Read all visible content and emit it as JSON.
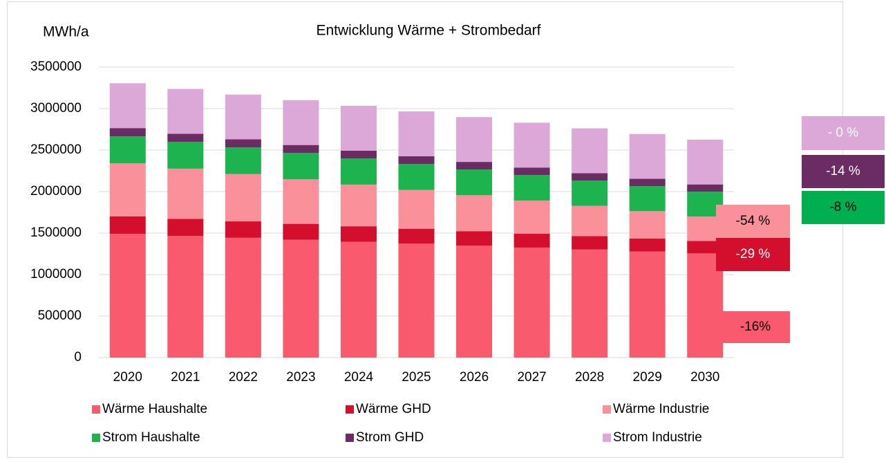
{
  "chart_data": {
    "type": "stacked_bar",
    "title": "Entwicklung Wärme + Strombedarf",
    "y_axis_label": "MWh/a",
    "categories": [
      "2020",
      "2021",
      "2022",
      "2023",
      "2024",
      "2025",
      "2026",
      "2027",
      "2028",
      "2029",
      "2030"
    ],
    "series": [
      {
        "name": "Wärme Haushalte",
        "color": "#fa5a6e",
        "values": [
          1490000,
          1466500,
          1443000,
          1419500,
          1396000,
          1372500,
          1349000,
          1325500,
          1302000,
          1278500,
          1255000
        ]
      },
      {
        "name": "Wärme GHD",
        "color": "#d40f2e",
        "values": [
          210000,
          204000,
          198000,
          192000,
          186000,
          180000,
          174000,
          168000,
          162000,
          156000,
          150000
        ]
      },
      {
        "name": "Wärme Industrie",
        "color": "#f9909a",
        "values": [
          640000,
          605500,
          571000,
          536500,
          502000,
          467500,
          433000,
          398500,
          364000,
          329500,
          295000
        ]
      },
      {
        "name": "Strom Haushalte",
        "color": "#1db34f",
        "values": [
          325000,
          322500,
          320000,
          317500,
          315000,
          312500,
          310000,
          307500,
          305000,
          302500,
          300000
        ]
      },
      {
        "name": "Strom GHD",
        "color": "#6b2c63",
        "values": [
          100000,
          98600,
          97200,
          95800,
          94400,
          93000,
          91600,
          90200,
          88800,
          87400,
          86000
        ]
      },
      {
        "name": "Strom Industrie",
        "color": "#dca8d8",
        "values": [
          540000,
          540000,
          540000,
          540000,
          540000,
          540000,
          540000,
          540000,
          540000,
          540000,
          540000
        ]
      }
    ],
    "ylim": [
      0,
      3500000
    ],
    "yticks": [
      0,
      500000,
      1000000,
      1500000,
      2000000,
      2500000,
      3000000,
      3500000
    ],
    "grid": true,
    "legend": "bottom",
    "annotations": [
      {
        "text": "-54 %",
        "color": "#f9909a"
      },
      {
        "text": "-29 %",
        "color": "#d40f2e"
      },
      {
        "text": "-16%",
        "color": "#fa5a6e"
      },
      {
        "text": "- 0 %",
        "color": "#dca8d8"
      },
      {
        "text": "-14 %",
        "color": "#6b2c63"
      },
      {
        "text": "-8 %",
        "color": "#00b050"
      }
    ]
  }
}
